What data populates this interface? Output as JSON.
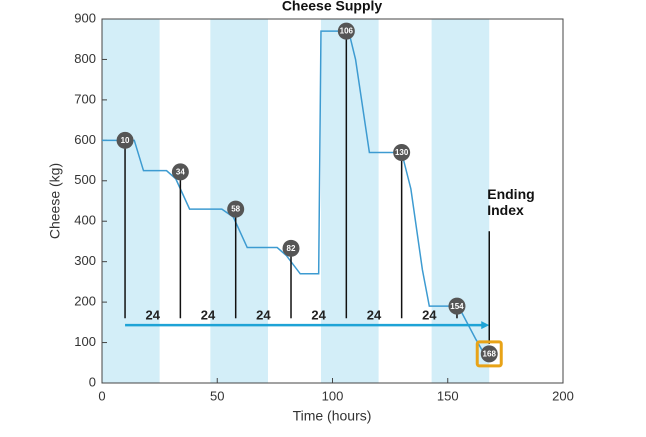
{
  "chart_data": {
    "type": "line",
    "title": "Cheese Supply",
    "xlabel": "Time (hours)",
    "ylabel": "Cheese (kg)",
    "xlim": [
      0,
      200
    ],
    "ylim": [
      0,
      900
    ],
    "xticks": [
      0,
      50,
      100,
      150,
      200
    ],
    "yticks": [
      0,
      100,
      200,
      300,
      400,
      500,
      600,
      700,
      800,
      900
    ],
    "shaded_bands": [
      [
        0,
        25
      ],
      [
        47,
        72
      ],
      [
        95,
        120
      ],
      [
        143,
        168
      ]
    ],
    "band_color": "#d3eef8",
    "series": [
      {
        "name": "Cheese",
        "color": "#3d9bd1",
        "x": [
          0,
          14,
          18,
          28,
          32,
          38,
          52,
          57,
          63,
          76,
          80,
          86,
          94,
          95,
          107,
          110,
          116,
          130,
          134,
          139,
          142,
          152,
          156,
          162,
          165,
          168
        ],
        "values": [
          600,
          600,
          525,
          525,
          505,
          430,
          430,
          410,
          335,
          335,
          315,
          270,
          270,
          870,
          870,
          800,
          570,
          570,
          480,
          280,
          190,
          190,
          175,
          110,
          80,
          72
        ]
      }
    ],
    "markers": {
      "x": [
        10,
        34,
        58,
        82,
        106,
        130,
        154,
        168
      ],
      "y": [
        600,
        522,
        430,
        333,
        870,
        570,
        190,
        72
      ],
      "color": "#555555",
      "highlight_color": "#e8a317"
    },
    "interval_labels": [
      24,
      24,
      24,
      24,
      24,
      24
    ],
    "guide_base": 160,
    "arrow_y": 143,
    "arrow_color": "#1ea3d6",
    "annotation": [
      "Ending",
      "Index"
    ],
    "annotation_top": 400
  }
}
